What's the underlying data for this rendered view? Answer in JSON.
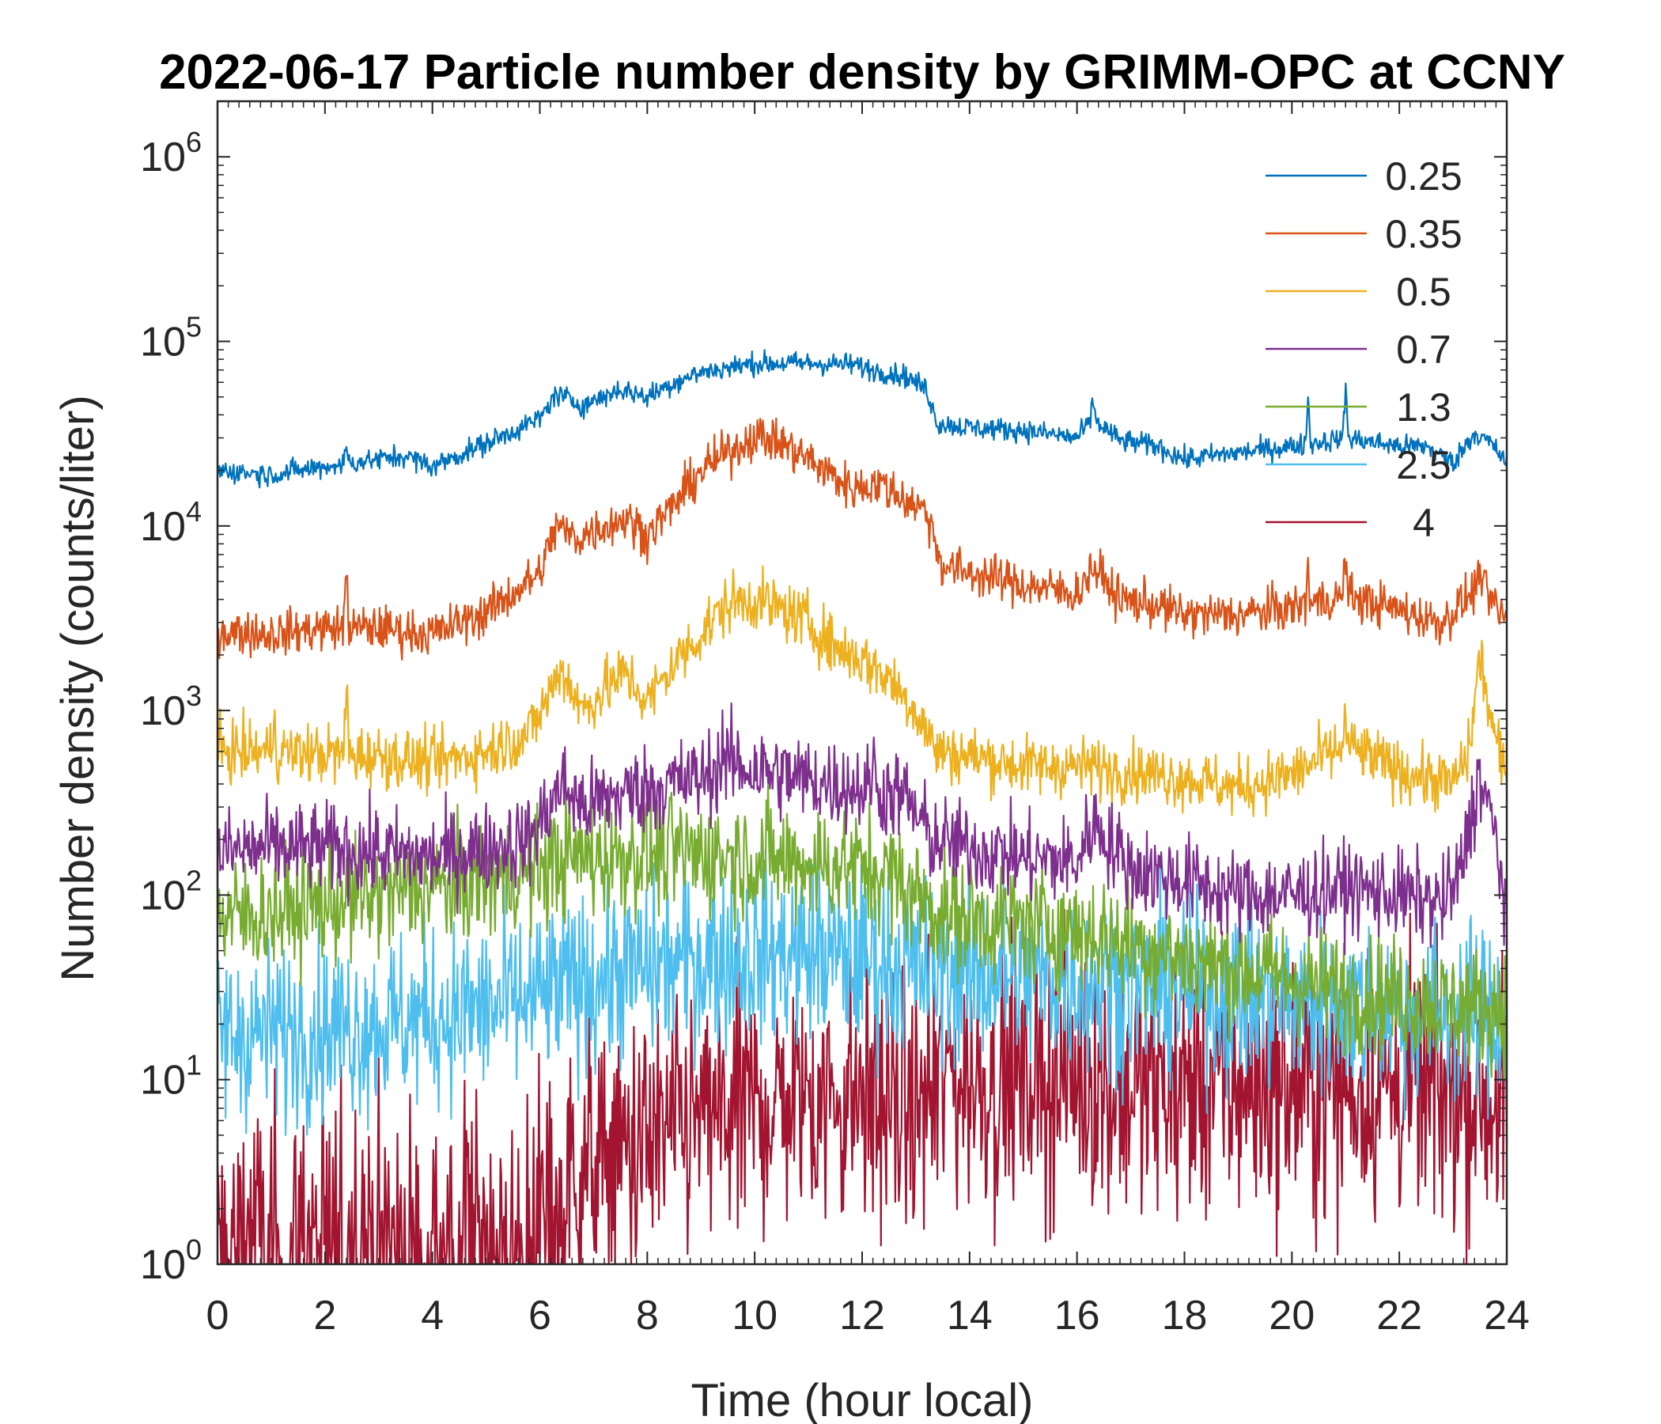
{
  "chart_data": {
    "type": "line",
    "title": "2022-06-17 Particle number density by GRIMM-OPC at CCNY",
    "xlabel": "Time (hour local)",
    "ylabel": "Number density (counts/liter)",
    "xlim": [
      0,
      24
    ],
    "ylim": [
      1,
      2000000
    ],
    "yscale": "log",
    "x_ticks": [
      0,
      2,
      4,
      6,
      8,
      10,
      12,
      14,
      16,
      18,
      20,
      22,
      24
    ],
    "x_tick_labels": [
      "0",
      "2",
      "4",
      "6",
      "8",
      "10",
      "12",
      "14",
      "16",
      "18",
      "20",
      "22",
      "24"
    ],
    "y_ticks": [
      {
        "value": 1,
        "base": "10",
        "exp": "0"
      },
      {
        "value": 10,
        "base": "10",
        "exp": "1"
      },
      {
        "value": 100,
        "base": "10",
        "exp": "2"
      },
      {
        "value": 1000,
        "base": "10",
        "exp": "3"
      },
      {
        "value": 10000,
        "base": "10",
        "exp": "4"
      },
      {
        "value": 100000,
        "base": "10",
        "exp": "5"
      },
      {
        "value": 1000000,
        "base": "10",
        "exp": "6"
      }
    ],
    "legend": {
      "location": "top-right",
      "box": false
    },
    "series": [
      {
        "name": "0.25",
        "color": "#0072BD",
        "noise": 0.03,
        "spikes": [
          [
            20.3,
            0.25
          ],
          [
            21.0,
            0.3
          ],
          [
            16.3,
            0.12
          ],
          [
            2.4,
            0.1
          ]
        ],
        "x": [
          0,
          1,
          2,
          3,
          3.5,
          4,
          5,
          6,
          6.3,
          6.8,
          7.5,
          8,
          8.5,
          9,
          10,
          11,
          11.8,
          12.2,
          12.8,
          13.2,
          13.4,
          14,
          15,
          16,
          16.3,
          16.8,
          17.5,
          18,
          19,
          20,
          21,
          22,
          22.5,
          23,
          23.4,
          23.7,
          24
        ],
        "y": [
          20000,
          19000,
          21000,
          23000,
          24000,
          21000,
          28000,
          38000,
          52000,
          45000,
          55000,
          50000,
          60000,
          68000,
          76000,
          76000,
          75000,
          70000,
          65000,
          55000,
          36000,
          34000,
          33000,
          30000,
          38000,
          29000,
          27000,
          23000,
          25000,
          27000,
          30000,
          27000,
          27000,
          22000,
          32000,
          28000,
          22000
        ]
      },
      {
        "name": "0.35",
        "color": "#D95319",
        "noise": 0.06,
        "spikes": [
          [
            2.4,
            0.35
          ],
          [
            20.3,
            0.2
          ],
          [
            21.0,
            0.25
          ],
          [
            23.5,
            0.15
          ]
        ],
        "x": [
          0,
          1,
          2,
          3,
          4,
          5,
          6,
          6.3,
          6.7,
          7.0,
          7.6,
          8.0,
          8.5,
          9,
          10,
          10.5,
          11,
          11.8,
          12.3,
          12.8,
          13.2,
          13.5,
          14,
          15,
          16,
          16.3,
          16.8,
          17.5,
          18,
          19,
          20,
          21,
          22,
          22.8,
          23.5,
          24
        ],
        "y": [
          2700,
          2600,
          2800,
          2800,
          2600,
          3400,
          5500,
          10000,
          8500,
          9500,
          11000,
          9000,
          13000,
          20000,
          31000,
          28000,
          23000,
          16000,
          17000,
          14000,
          12000,
          6000,
          5600,
          4800,
          4300,
          6000,
          4000,
          3700,
          3300,
          3300,
          3600,
          4200,
          3500,
          3000,
          4800,
          3000
        ]
      },
      {
        "name": "0.5",
        "color": "#EDB120",
        "noise": 0.08,
        "spikes": [
          [
            1.05,
            0.2
          ],
          [
            2.4,
            0.4
          ],
          [
            21.0,
            0.15
          ]
        ],
        "x": [
          0,
          1,
          2,
          3,
          4,
          5,
          5.8,
          6.1,
          6.4,
          6.8,
          7.2,
          7.6,
          8.0,
          8.5,
          9,
          9.5,
          10,
          10.5,
          11,
          11.5,
          12,
          12.5,
          13.0,
          13.4,
          14,
          15,
          16,
          17,
          18,
          19,
          20,
          21,
          22,
          23,
          23.3,
          23.5,
          23.7,
          24
        ],
        "y": [
          600,
          600,
          580,
          570,
          520,
          600,
          750,
          1100,
          1700,
          1000,
          1300,
          1600,
          1100,
          1800,
          2600,
          3800,
          4000,
          3500,
          3000,
          2200,
          1900,
          1500,
          1000,
          600,
          570,
          500,
          500,
          470,
          430,
          380,
          450,
          650,
          470,
          400,
          600,
          2000,
          900,
          400
        ]
      },
      {
        "name": "0.7",
        "color": "#7E2F8E",
        "noise": 0.12,
        "spikes": [
          [
            9.4,
            0.15
          ],
          [
            12.2,
            0.25
          ]
        ],
        "x": [
          0,
          1,
          2,
          3,
          4,
          5,
          5.8,
          6.1,
          6.4,
          6.8,
          7.5,
          8,
          9,
          9.5,
          10,
          11,
          12,
          12.8,
          13.3,
          14,
          15,
          16,
          16.3,
          17,
          18,
          19,
          20,
          21,
          22,
          22.8,
          23.1,
          23.5,
          23.8,
          24
        ],
        "y": [
          170,
          180,
          180,
          170,
          160,
          180,
          200,
          270,
          400,
          300,
          350,
          380,
          430,
          520,
          480,
          420,
          380,
          340,
          200,
          180,
          160,
          150,
          250,
          140,
          120,
          100,
          100,
          110,
          100,
          90,
          120,
          450,
          200,
          80
        ]
      },
      {
        "name": "1.3",
        "color": "#77AC30",
        "noise": 0.16,
        "spikes": [],
        "x": [
          0,
          1,
          2,
          3,
          4,
          5,
          6,
          6.5,
          7,
          8,
          9,
          10,
          11,
          12,
          12.5,
          13,
          13.5,
          14,
          15,
          16,
          17,
          18,
          19,
          20,
          21,
          22,
          23,
          24
        ],
        "y": [
          75,
          80,
          90,
          100,
          110,
          120,
          140,
          160,
          160,
          170,
          165,
          160,
          150,
          140,
          130,
          100,
          80,
          75,
          70,
          65,
          55,
          45,
          40,
          35,
          30,
          28,
          25,
          25
        ]
      },
      {
        "name": "2.5",
        "color": "#4DBEEE",
        "noise": 0.24,
        "spikes": [],
        "x": [
          0,
          1,
          2,
          3,
          4,
          5,
          6,
          7,
          8,
          9,
          10,
          11,
          12,
          13,
          14,
          15,
          16,
          17,
          18,
          19,
          20,
          21,
          22,
          23,
          24
        ],
        "y": [
          18,
          18,
          19,
          20,
          22,
          24,
          28,
          35,
          40,
          45,
          48,
          48,
          45,
          40,
          38,
          36,
          34,
          32,
          30,
          28,
          26,
          25,
          24,
          23,
          22
        ]
      },
      {
        "name": "4",
        "color": "#A2142F",
        "noise": 0.35,
        "spikes": [],
        "x": [
          0,
          1,
          2,
          3,
          4,
          5,
          6,
          7,
          8,
          9,
          10,
          11,
          12,
          13,
          13.5,
          14,
          15,
          16,
          17,
          18,
          19,
          20,
          21,
          22,
          23,
          24
        ],
        "y": [
          1.5,
          1.8,
          1.8,
          1.8,
          1.8,
          2.0,
          2.5,
          3.5,
          4.5,
          6,
          7,
          8,
          8,
          7,
          10,
          10,
          10,
          10,
          9,
          9,
          9,
          9,
          9,
          9,
          8,
          8
        ]
      }
    ]
  }
}
